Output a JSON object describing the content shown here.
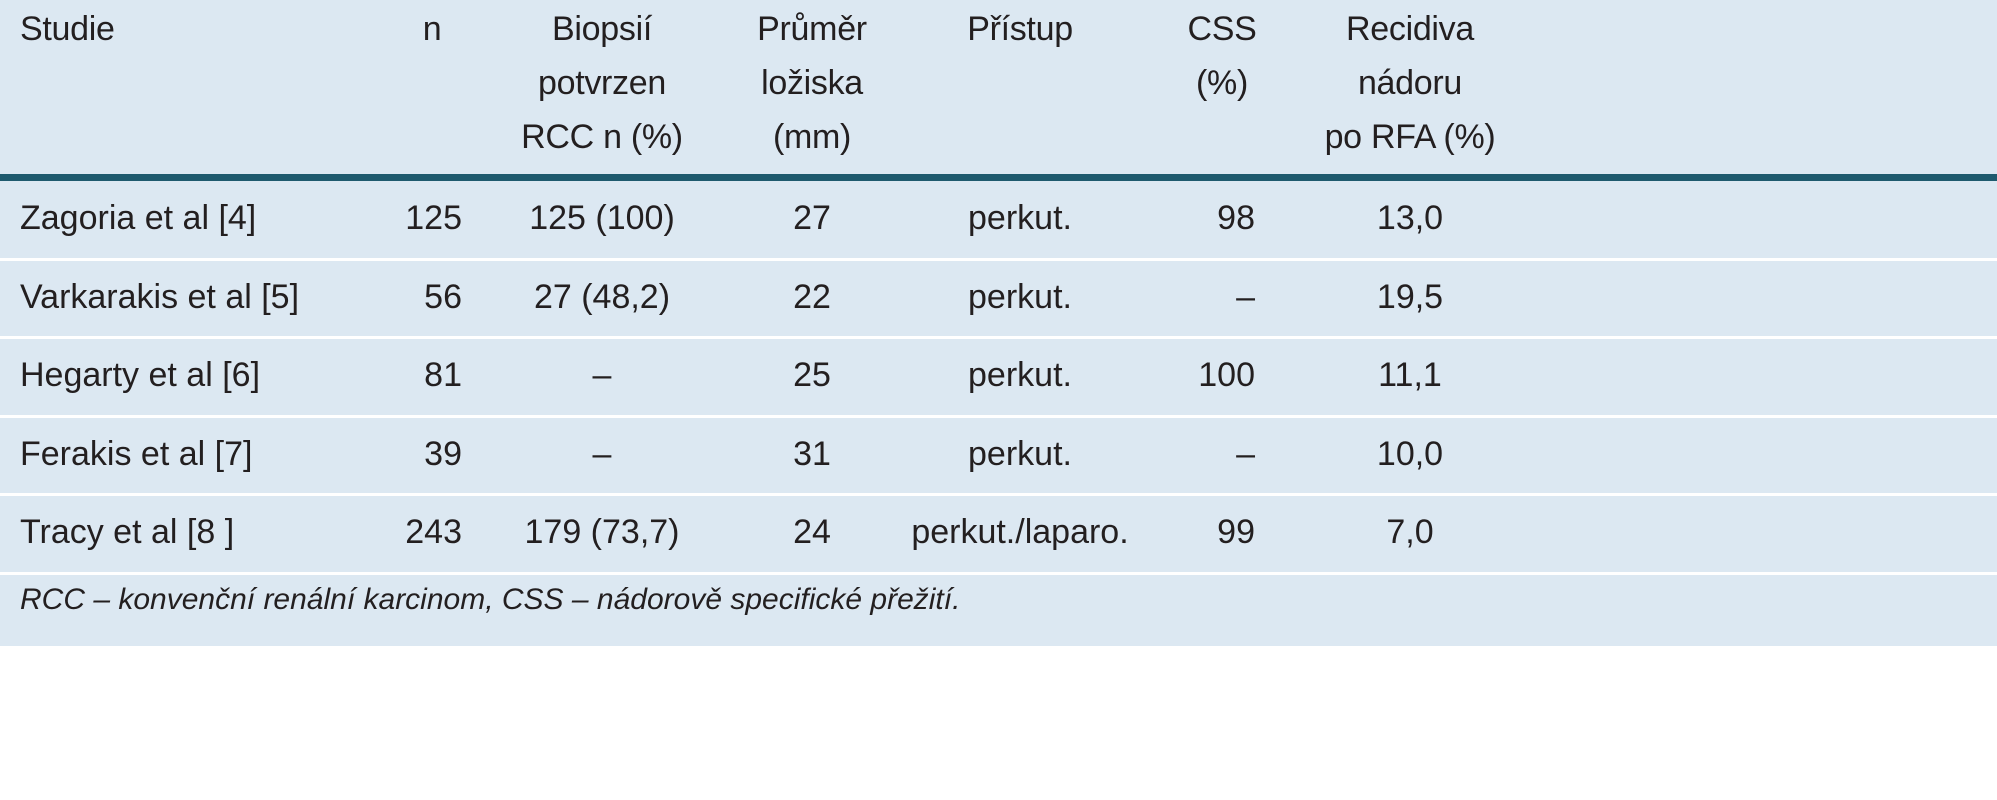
{
  "table": {
    "header": [
      [
        "Studie"
      ],
      [
        "n"
      ],
      [
        "Biopsií",
        "potvrzen",
        "RCC n (%)"
      ],
      [
        "Průměr",
        "ložiska",
        "(mm)"
      ],
      [
        "Přístup"
      ],
      [
        "CSS",
        "(%)"
      ],
      [
        "Recidiva",
        "nádoru",
        "po RFA (%)"
      ]
    ],
    "rows": [
      [
        "Zagoria et al [4]",
        "125",
        "125 (100)",
        "27",
        "perkut.",
        "98",
        "13,0"
      ],
      [
        "Varkarakis et al [5]",
        "56",
        "27 (48,2)",
        "22",
        "perkut.",
        "–",
        "19,5"
      ],
      [
        "Hegarty et al [6]",
        "81",
        "–",
        "25",
        "perkut.",
        "100",
        "11,1"
      ],
      [
        "Ferakis et al [7]",
        "39",
        "–",
        "31",
        "perkut.",
        "–",
        "10,0"
      ],
      [
        "Tracy et al [8 ]",
        "243",
        "179 (73,7)",
        "24",
        "perkut./laparo.",
        "99",
        "7,0"
      ]
    ],
    "footnote": "RCC – konvenční renální karcinom, CSS – nádorově specifické přežití."
  }
}
